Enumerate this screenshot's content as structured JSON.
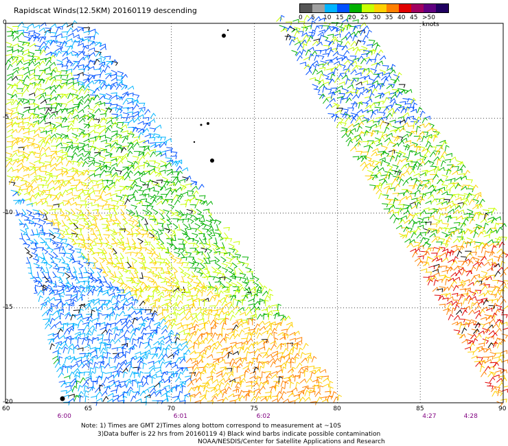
{
  "title": "Rapidscat Winds(12.5KM) 20160119 descending",
  "legend": {
    "labels": [
      "0",
      "5",
      "10",
      "15",
      "20",
      "25",
      "30",
      "35",
      "40",
      "45",
      ">50 knots"
    ],
    "colors": [
      "#555555",
      "#a0a0a0",
      "#00b4ff",
      "#0050ff",
      "#00b000",
      "#c8ff00",
      "#ffd000",
      "#ff8000",
      "#e00000",
      "#a00060",
      "#600080",
      "#200060"
    ]
  },
  "axes": {
    "lat_ticks": [
      "0",
      "-5",
      "-10",
      "-15",
      "-20"
    ],
    "lon_ticks": [
      "60",
      "65",
      "70",
      "75",
      "80",
      "85",
      "90"
    ],
    "lon_range": [
      60,
      90
    ],
    "lat_range": [
      0,
      -20
    ]
  },
  "time_labels": [
    {
      "text": "6:00",
      "lon": 63.5
    },
    {
      "text": "6:01",
      "lon": 70.5
    },
    {
      "text": "6:02",
      "lon": 75.5
    },
    {
      "text": "4:27",
      "lon": 85.5
    },
    {
      "text": "4:28",
      "lon": 88
    }
  ],
  "notes": {
    "line1": "Note: 1) Times are GMT 2)Times along bottom correspond to measurement at ~10S",
    "line2": "3)Data buffer is 22 hrs from 20160119 4) Black wind barbs indicate possible contamination",
    "line3": "NOAA/NESDIS/Center for Satellite Applications and Research"
  }
}
